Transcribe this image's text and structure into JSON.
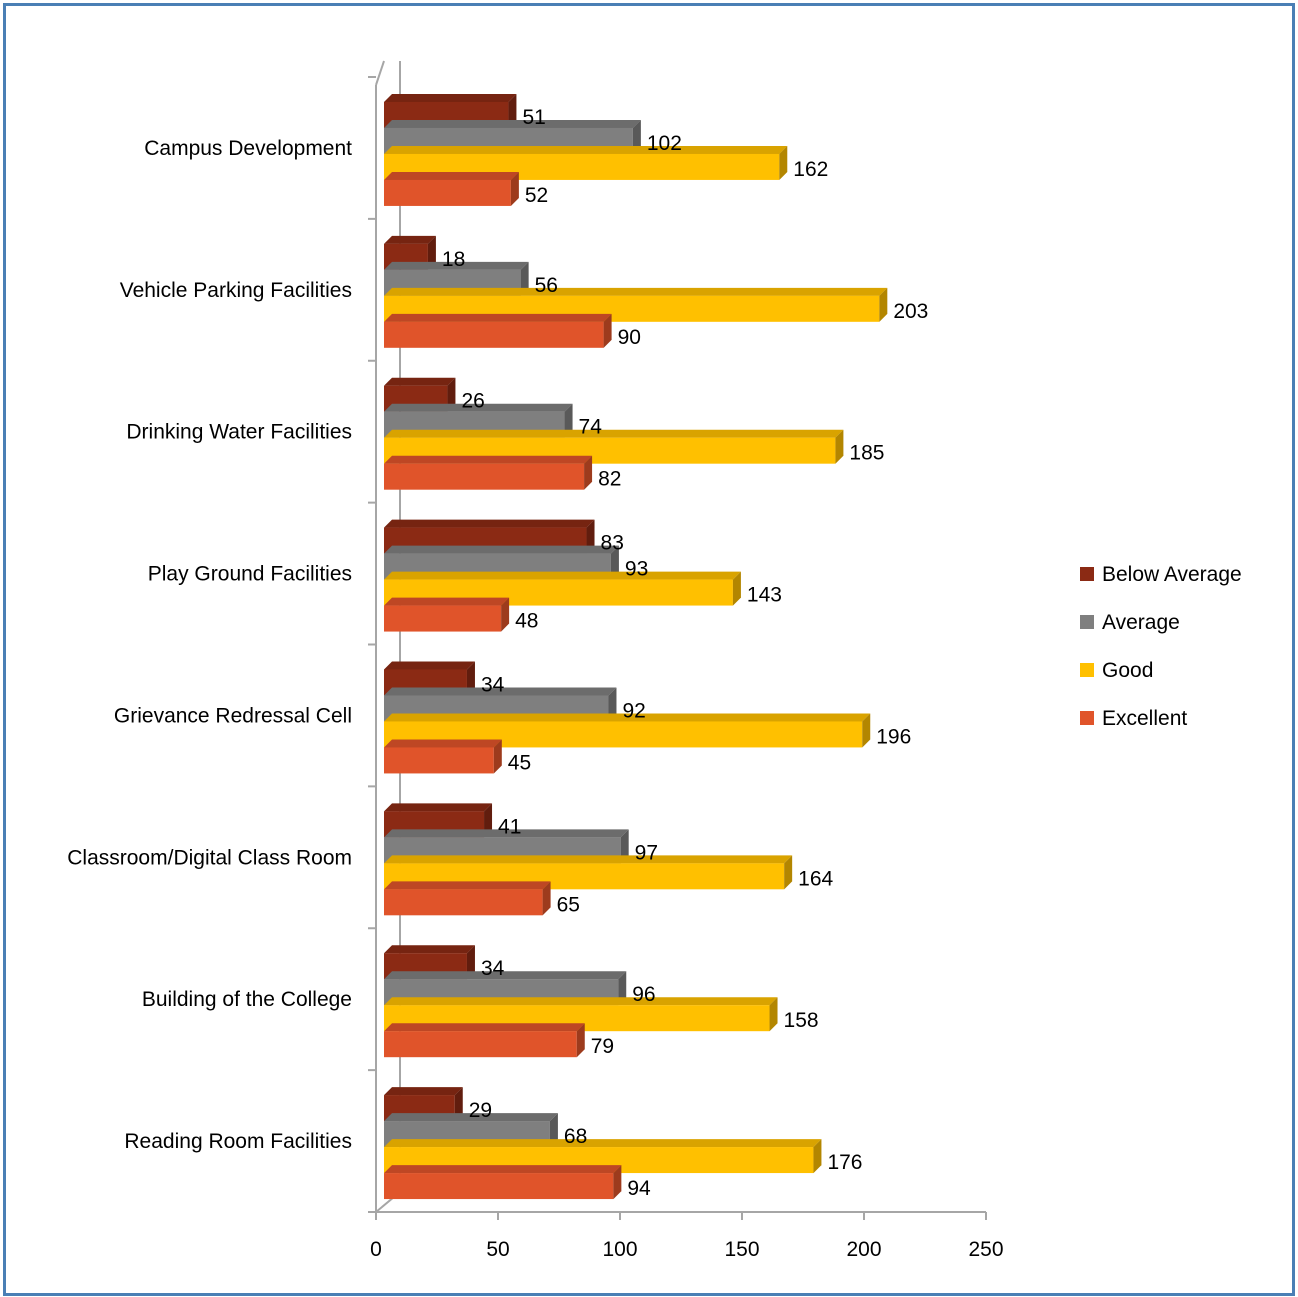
{
  "chart_data": {
    "type": "bar",
    "orientation": "horizontal",
    "style": "3d-clustered",
    "categories": [
      "Campus Development",
      "Vehicle Parking Facilities",
      "Drinking Water Facilities",
      "Play Ground Facilities",
      "Grievance Redressal Cell",
      "Classroom/Digital Class Room",
      "Building of the College",
      "Reading Room Facilities"
    ],
    "series": [
      {
        "name": "Below Average",
        "color": "#8b2a14",
        "values": [
          51,
          18,
          26,
          83,
          34,
          41,
          34,
          29
        ]
      },
      {
        "name": "Average",
        "color": "#7f7f7f",
        "values": [
          102,
          56,
          74,
          93,
          92,
          97,
          96,
          68
        ]
      },
      {
        "name": "Good",
        "color": "#ffc000",
        "values": [
          162,
          203,
          185,
          143,
          196,
          164,
          158,
          176
        ]
      },
      {
        "name": "Excellent",
        "color": "#e0542a",
        "values": [
          52,
          90,
          82,
          48,
          45,
          65,
          79,
          94
        ]
      }
    ],
    "xlim": [
      0,
      250
    ],
    "xticks": [
      0,
      50,
      100,
      150,
      200,
      250
    ],
    "title": "",
    "xlabel": "",
    "ylabel": "",
    "grid": false,
    "legend_position": "right",
    "data_labels": true
  }
}
